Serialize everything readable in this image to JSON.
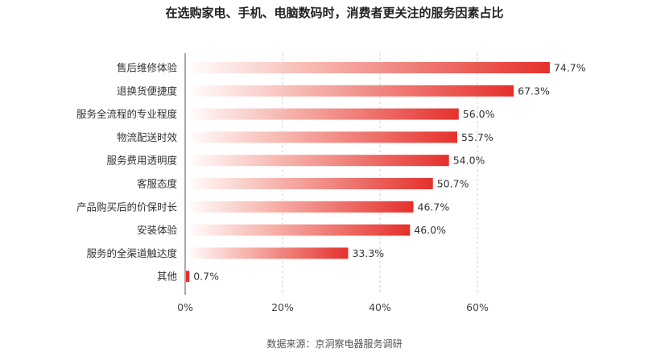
{
  "chart_data": {
    "type": "bar",
    "orientation": "horizontal",
    "title": "在选购家电、手机、电脑数码时，消费者更关注的服务因素占比",
    "categories": [
      "售后维修体验",
      "退换货便捷度",
      "服务全流程的专业程度",
      "物流配送时效",
      "服务费用透明度",
      "客服态度",
      "产品购买后的价保时长",
      "安装体验",
      "服务的全渠道触达度",
      "其他"
    ],
    "values": [
      74.7,
      67.3,
      56.0,
      55.7,
      54.0,
      50.7,
      46.7,
      46.0,
      33.3,
      0.7
    ],
    "value_labels": [
      "74.7%",
      "67.3%",
      "56.0%",
      "55.7%",
      "54.0%",
      "50.7%",
      "46.7%",
      "46.0%",
      "33.3%",
      "0.7%"
    ],
    "xlim": [
      0,
      80
    ],
    "xticks": [
      0,
      20,
      40,
      60
    ],
    "xtick_labels": [
      "0%",
      "20%",
      "40%",
      "60%"
    ],
    "grid": true,
    "legend": "none",
    "colors": {
      "bar_start": "#ffffff",
      "bar_end": "#e5302c",
      "grid": "#cfcfcf",
      "axis": "#555555"
    }
  },
  "source": "数据来源：京洞察电器服务调研"
}
